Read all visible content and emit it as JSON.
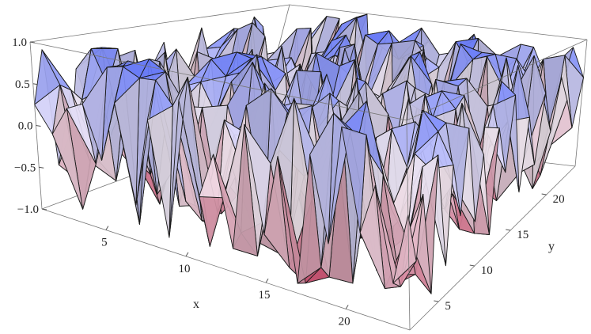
{
  "chart_data": {
    "type": "surface3d",
    "title": "",
    "xlabel": "x",
    "ylabel": "y",
    "zlabel": "",
    "x_range": [
      1,
      24
    ],
    "y_range": [
      1,
      24
    ],
    "z_range": [
      -1.0,
      1.0
    ],
    "x_ticks": [
      5,
      10,
      15,
      20
    ],
    "y_ticks": [
      5,
      10,
      15,
      20
    ],
    "z_ticks": [
      -1.0,
      -0.5,
      0.0,
      0.5,
      1.0
    ],
    "x_tick_labels": [
      "5",
      "10",
      "15",
      "20"
    ],
    "y_tick_labels": [
      "5",
      "10",
      "15",
      "20"
    ],
    "z_tick_labels": [
      "−1.0",
      "−0.5",
      "0.0",
      "0.5",
      "1.0"
    ],
    "grid": false,
    "colors": {
      "low": "#a8324f",
      "mid": "#f2e9f2",
      "high": "#4a5fe0"
    },
    "series": [
      {
        "x_label_edge_profile": [
          0.25,
          -0.05,
          0.3,
          0.4,
          -0.2,
          0.5,
          -0.6,
          0.4,
          -0.85,
          0.7,
          -0.3,
          0.2,
          -0.75,
          0.6,
          -0.5,
          0.35,
          -0.9,
          0.45,
          -0.4,
          0.8,
          -0.2,
          0.3,
          -0.6,
          0.1
        ],
        "y_label_edge_profile": [
          0.1,
          -0.4,
          0.2,
          -0.85,
          0.5,
          -0.7,
          0.3,
          -0.3,
          0.6,
          -0.5,
          0.2,
          -0.8,
          0.4,
          -0.2,
          0.7,
          -0.6,
          0.3,
          -0.4,
          0.5,
          -0.1,
          0.6,
          0.2,
          -0.3,
          0.4
        ]
      }
    ]
  }
}
